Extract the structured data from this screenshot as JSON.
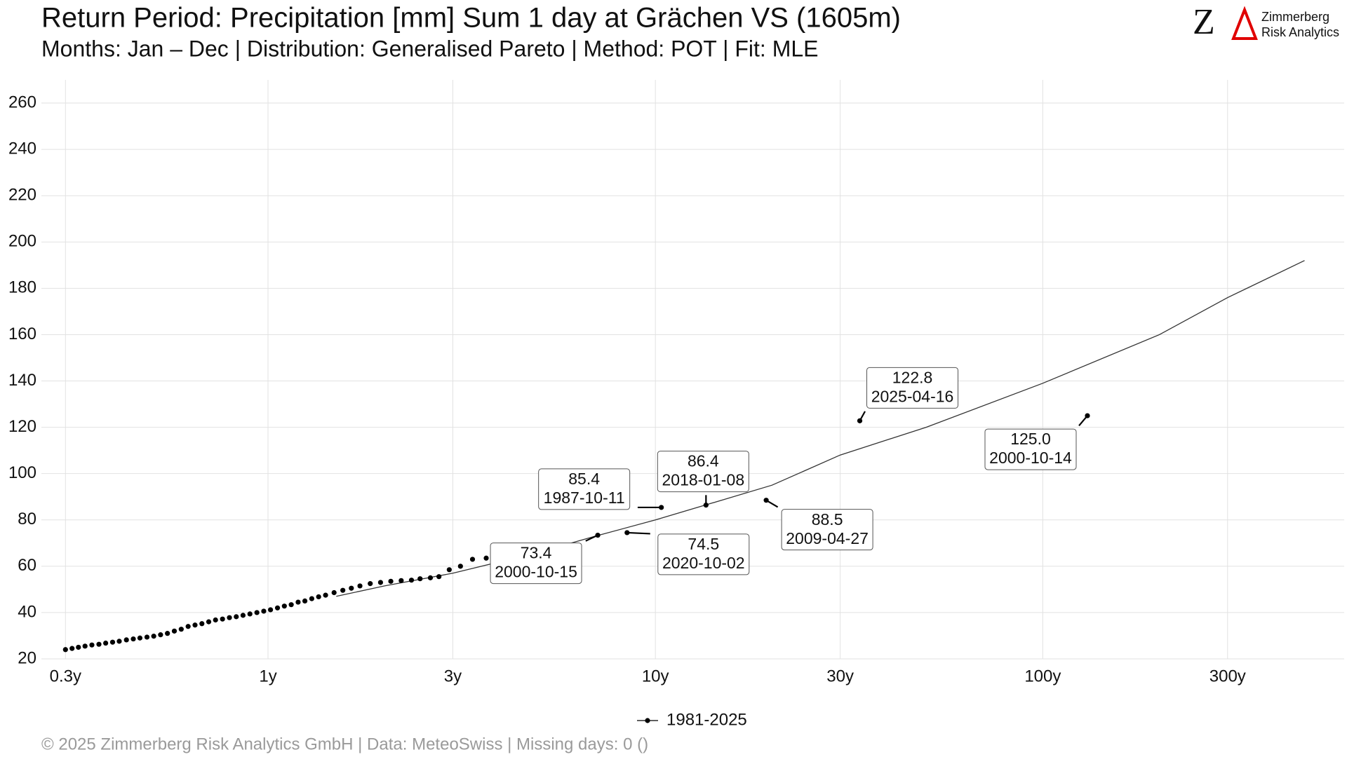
{
  "chart_data": {
    "type": "scatter",
    "title": "Return Period: Precipitation [mm] Sum 1 day at Grächen  VS (1605m)",
    "subtitle": "Months: Jan – Dec | Distribution: Generalised Pareto | Method: POT | Fit: MLE",
    "footer": "©  2025 Zimmerberg Risk Analytics GmbH | Data: MeteoSwiss | Missing days: 0 ()",
    "logo": {
      "letter": "Z",
      "line1": "Zimmerberg",
      "line2": "Risk Analytics"
    },
    "x_log": true,
    "grid": true,
    "legend": "bottom",
    "xlim": [
      0.26,
      600
    ],
    "ylim": [
      20,
      270
    ],
    "xticks": [
      {
        "value": 0.3,
        "label": "0.3y"
      },
      {
        "value": 1,
        "label": "1y"
      },
      {
        "value": 3,
        "label": "3y"
      },
      {
        "value": 10,
        "label": "10y"
      },
      {
        "value": 30,
        "label": "30y"
      },
      {
        "value": 100,
        "label": "100y"
      },
      {
        "value": 300,
        "label": "300y"
      }
    ],
    "yticks": [
      20,
      40,
      60,
      80,
      100,
      120,
      140,
      160,
      180,
      200,
      220,
      240,
      260
    ],
    "fit": {
      "color": "#333333",
      "x": [
        1.5,
        2,
        3,
        5,
        7,
        10,
        20,
        30,
        50,
        100,
        200,
        300,
        474
      ],
      "values": [
        47,
        51.5,
        57,
        66,
        73,
        80,
        95,
        108,
        120,
        139,
        160,
        176,
        192
      ]
    },
    "series": [
      {
        "name": "1981-2025",
        "color": "#000000",
        "x": [
          0.3,
          0.312,
          0.324,
          0.337,
          0.351,
          0.366,
          0.381,
          0.397,
          0.413,
          0.431,
          0.449,
          0.467,
          0.487,
          0.507,
          0.528,
          0.55,
          0.573,
          0.597,
          0.622,
          0.648,
          0.675,
          0.703,
          0.732,
          0.763,
          0.795,
          0.828,
          0.862,
          0.898,
          0.936,
          0.975,
          1.015,
          1.058,
          1.102,
          1.148,
          1.196,
          1.245,
          1.297,
          1.351,
          1.408,
          1.481,
          1.56,
          1.641,
          1.727,
          1.836,
          1.952,
          2.075,
          2.207,
          2.346,
          2.469,
          2.625,
          2.762,
          2.937,
          3.139,
          3.372,
          3.658,
          7.1,
          8.45,
          10.36,
          13.51,
          19.32,
          33.7,
          130.4
        ],
        "values": [
          24,
          24.5,
          25,
          25.5,
          26,
          26.3,
          26.8,
          27.2,
          27.6,
          28.2,
          28.6,
          29,
          29.4,
          29.8,
          30.4,
          31,
          32,
          32.8,
          34,
          34.6,
          35.2,
          36,
          36.8,
          37.2,
          37.8,
          38.2,
          38.8,
          39.4,
          40,
          40.6,
          41.2,
          42,
          42.8,
          43.4,
          44.5,
          45,
          46,
          46.8,
          47.5,
          48.6,
          49.6,
          50.5,
          51.5,
          52.5,
          53,
          53.5,
          53.8,
          54,
          54.6,
          55,
          55.5,
          58.5,
          60,
          63,
          63.5,
          73.4,
          74.5,
          85.4,
          86.4,
          88.5,
          122.8,
          125.0
        ],
        "value_labels": [
          null,
          null,
          null,
          null,
          null,
          null,
          null,
          null,
          null,
          null,
          null,
          null,
          null,
          null,
          null,
          null,
          null,
          null,
          null,
          null,
          null,
          null,
          null,
          null,
          null,
          null,
          null,
          null,
          null,
          null,
          null,
          null,
          null,
          null,
          null,
          null,
          null,
          null,
          null,
          null,
          null,
          null,
          null,
          null,
          null,
          null,
          null,
          null,
          null,
          null,
          null,
          null,
          null,
          null,
          null,
          "73.4",
          "74.5",
          "85.4",
          "86.4",
          "88.5",
          "122.8",
          "125.0"
        ],
        "dates": [
          null,
          null,
          null,
          null,
          null,
          null,
          null,
          null,
          null,
          null,
          null,
          null,
          null,
          null,
          null,
          null,
          null,
          null,
          null,
          null,
          null,
          null,
          null,
          null,
          null,
          null,
          null,
          null,
          null,
          null,
          null,
          null,
          null,
          null,
          null,
          null,
          null,
          null,
          null,
          null,
          null,
          null,
          null,
          null,
          null,
          null,
          null,
          null,
          null,
          null,
          null,
          null,
          null,
          null,
          null,
          "2000-10-15",
          "2020-10-02",
          "1987-10-11",
          "2018-01-08",
          "2009-04-27",
          "2025-04-16",
          "2000-10-14"
        ]
      }
    ]
  }
}
